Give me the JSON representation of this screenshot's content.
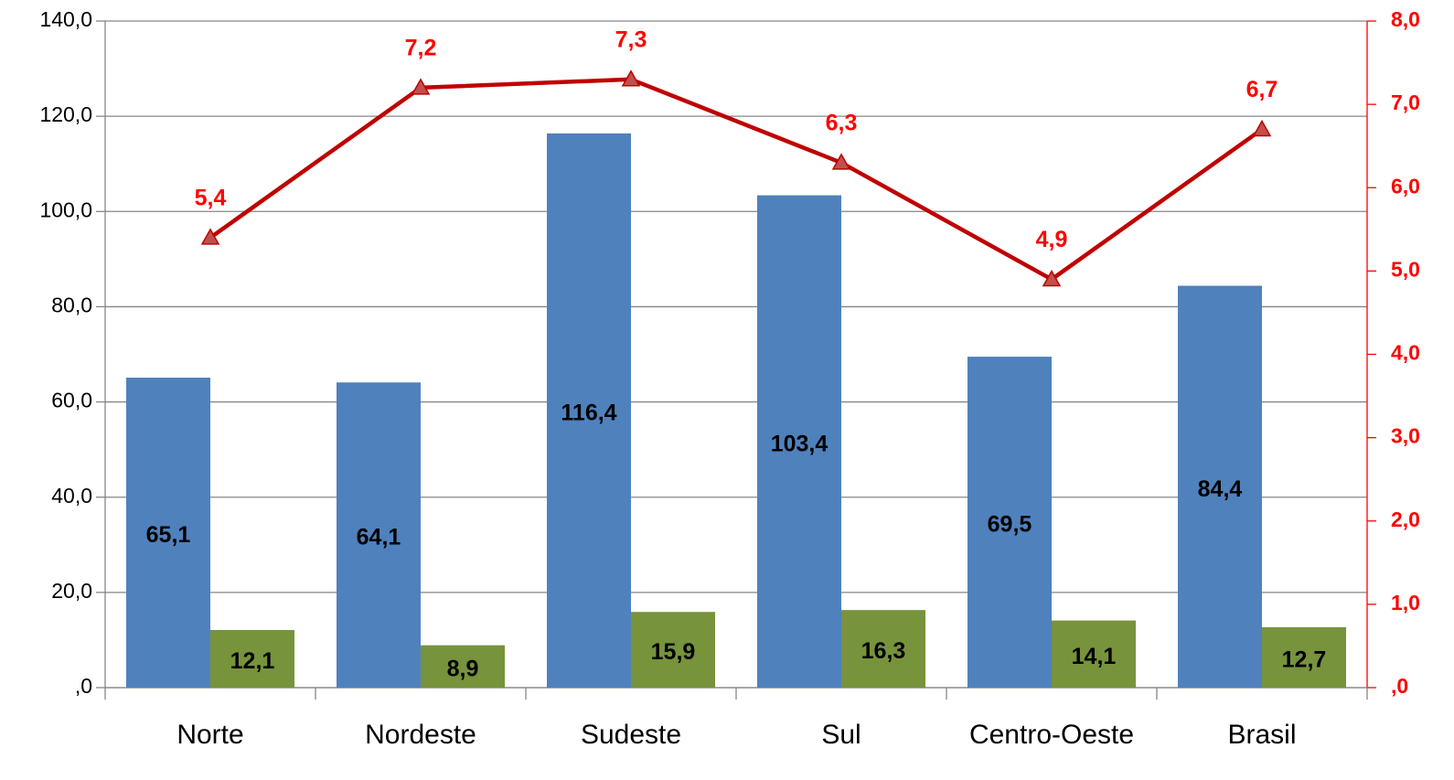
{
  "chart_data": {
    "type": "bar",
    "categories": [
      "Norte",
      "Nordeste",
      "Sudeste",
      "Sul",
      "Centro-Oeste",
      "Brasil"
    ],
    "series": [
      {
        "type": "bar",
        "color": "#4f81bd",
        "values": [
          65.1,
          64.1,
          116.4,
          103.4,
          69.5,
          84.4
        ],
        "value_labels": [
          "65,1",
          "64,1",
          "116,4",
          "103,4",
          "69,5",
          "84,4"
        ]
      },
      {
        "type": "bar",
        "color": "#77933c",
        "values": [
          12.1,
          8.9,
          15.9,
          16.3,
          14.1,
          12.7
        ],
        "value_labels": [
          "12,1",
          "8,9",
          "15,9",
          "16,3",
          "14,1",
          "12,7"
        ]
      },
      {
        "type": "line",
        "axis": "y2",
        "color": "#c00000",
        "marker_color": "#c0504d",
        "values": [
          5.4,
          7.2,
          7.3,
          6.3,
          4.9,
          6.7
        ],
        "value_labels": [
          "5,4",
          "7,2",
          "7,3",
          "6,3",
          "4,9",
          "6,7"
        ]
      }
    ],
    "ylim": [
      0,
      140
    ],
    "yticks": [
      {
        "value": 0,
        "label": ",0"
      },
      {
        "value": 20,
        "label": "20,0"
      },
      {
        "value": 40,
        "label": "40,0"
      },
      {
        "value": 60,
        "label": "60,0"
      },
      {
        "value": 80,
        "label": "80,0"
      },
      {
        "value": 100,
        "label": "100,0"
      },
      {
        "value": 120,
        "label": "120,0"
      },
      {
        "value": 140,
        "label": "140,0"
      }
    ],
    "y2lim": [
      0,
      8
    ],
    "y2ticks": [
      {
        "value": 0,
        "label": ",0"
      },
      {
        "value": 1,
        "label": "1,0"
      },
      {
        "value": 2,
        "label": "2,0"
      },
      {
        "value": 3,
        "label": "3,0"
      },
      {
        "value": 4,
        "label": "4,0"
      },
      {
        "value": 5,
        "label": "5,0"
      },
      {
        "value": 6,
        "label": "6,0"
      },
      {
        "value": 7,
        "label": "7,0"
      },
      {
        "value": 8,
        "label": "8,0"
      }
    ],
    "y2_color": "#ff0000",
    "grid": true
  }
}
